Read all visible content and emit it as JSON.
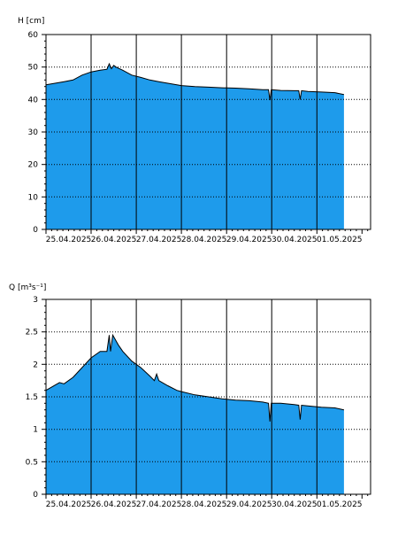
{
  "colors": {
    "fill": "#1E9BEB",
    "line": "#000000",
    "grid": "#000000",
    "background": "#ffffff"
  },
  "chart_data": [
    {
      "type": "area",
      "ylabel": "H [cm]",
      "ylim": [
        0,
        60
      ],
      "yticks": [
        0,
        10,
        20,
        30,
        40,
        50,
        60
      ],
      "ytick_labels": [
        "0",
        "10",
        "20",
        "30",
        "40",
        "50",
        "60"
      ],
      "xlim": [
        0,
        7.19
      ],
      "x_tick_labels": [
        "25.04.2025",
        "26.04.2025",
        "27.04.2025",
        "28.04.2025",
        "29.04.2025",
        "30.04.2025",
        "01.05.2025"
      ],
      "x_day_boundaries": [
        1,
        2,
        3,
        4,
        5,
        6
      ],
      "grid": {
        "vertical_solid": true,
        "horizontal_dotted": true
      },
      "x": [
        0,
        0.2,
        0.4,
        0.6,
        0.8,
        1.0,
        1.2,
        1.35,
        1.4,
        1.45,
        1.5,
        1.55,
        1.7,
        1.9,
        2.1,
        2.3,
        2.5,
        2.7,
        2.9,
        3.0,
        3.3,
        3.6,
        3.9,
        4.2,
        4.5,
        4.8,
        4.93,
        4.96,
        4.99,
        5.2,
        5.5,
        5.6,
        5.63,
        5.66,
        5.8,
        6.1,
        6.4,
        6.6
      ],
      "y": [
        44.5,
        45.0,
        45.5,
        46.0,
        47.5,
        48.5,
        49.0,
        49.3,
        51.0,
        49.5,
        50.5,
        50.0,
        49.0,
        47.5,
        46.8,
        46.0,
        45.5,
        45.0,
        44.5,
        44.3,
        44.0,
        43.8,
        43.6,
        43.5,
        43.3,
        43.0,
        43.0,
        39.8,
        43.0,
        42.8,
        42.7,
        42.7,
        40.0,
        42.7,
        42.5,
        42.3,
        42.1,
        41.5
      ]
    },
    {
      "type": "area",
      "ylabel": "Q [m³s⁻¹]",
      "ylim": [
        0,
        3
      ],
      "yticks": [
        0,
        0.5,
        1,
        1.5,
        2,
        2.5,
        3
      ],
      "ytick_labels": [
        "0",
        "0.5",
        "1",
        "1.5",
        "2",
        "2.5",
        "3"
      ],
      "xlim": [
        0,
        7.19
      ],
      "x_tick_labels": [
        "25.04.2025",
        "26.04.2025",
        "27.04.2025",
        "28.04.2025",
        "29.04.2025",
        "30.04.2025",
        "01.05.2025"
      ],
      "x_day_boundaries": [
        1,
        2,
        3,
        4,
        5,
        6
      ],
      "grid": {
        "vertical_solid": true,
        "horizontal_dotted": true
      },
      "x": [
        0,
        0.2,
        0.3,
        0.4,
        0.6,
        0.8,
        1.0,
        1.2,
        1.35,
        1.4,
        1.43,
        1.48,
        1.52,
        1.6,
        1.7,
        1.9,
        2.1,
        2.3,
        2.4,
        2.45,
        2.5,
        2.7,
        2.9,
        3.0,
        3.3,
        3.6,
        3.9,
        4.2,
        4.5,
        4.8,
        4.93,
        4.96,
        4.99,
        5.2,
        5.5,
        5.6,
        5.63,
        5.66,
        5.8,
        6.1,
        6.4,
        6.6
      ],
      "y": [
        1.6,
        1.68,
        1.72,
        1.7,
        1.8,
        1.95,
        2.1,
        2.2,
        2.2,
        2.45,
        2.2,
        2.45,
        2.4,
        2.3,
        2.2,
        2.05,
        1.95,
        1.82,
        1.75,
        1.85,
        1.75,
        1.67,
        1.6,
        1.58,
        1.53,
        1.5,
        1.47,
        1.45,
        1.44,
        1.42,
        1.4,
        1.12,
        1.4,
        1.4,
        1.38,
        1.37,
        1.15,
        1.37,
        1.36,
        1.34,
        1.33,
        1.3
      ]
    }
  ]
}
